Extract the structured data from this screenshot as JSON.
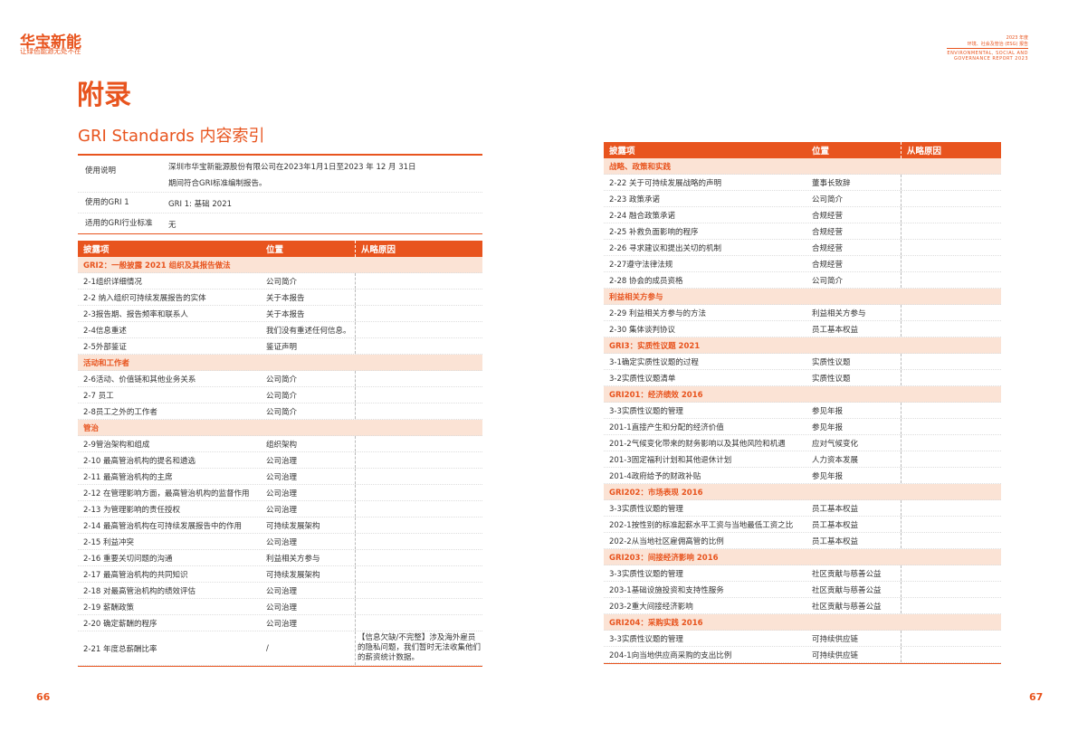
{
  "header": {
    "logo": "华宝新能",
    "slogan": "让绿色能源无处不在",
    "report_year": "2023 年度",
    "report_cn": "环境、社会及管治 (ESG) 报告",
    "report_en1": "ENVIRONMENTAL, SOCIAL AND",
    "report_en2": "GOVERNANCE REPORT 2023"
  },
  "title": "附录",
  "subtitle": "GRI Standards 内容索引",
  "info_table": {
    "rows": [
      [
        "使用说明",
        "深圳市华宝新能源股份有限公司在2023年1月1日至2023 年 12 月 31日期间符合GRI标准编制报告。"
      ],
      [
        "使用的GRI 1",
        "GRI 1: 基础 2021"
      ],
      [
        "适用的GRI行业标准",
        "无"
      ]
    ]
  },
  "columns": [
    "披露项",
    "位置",
    "从略原因"
  ],
  "left_table": {
    "rows": [
      [
        "GRI2：一般披露 2021 组织及其报告做法"
      ],
      [
        "2-1组织详细情况",
        "公司简介"
      ],
      [
        "2-2 纳入组织可持续发展报告的实体",
        "关于本报告"
      ],
      [
        "2-3报告期、报告频率和联系人",
        "关于本报告"
      ],
      [
        "2-4信息重述",
        "我们没有重述任何信息。"
      ],
      [
        "2-5外部鉴证",
        "鉴证声明"
      ],
      [
        "活动和工作者"
      ],
      [
        "2-6活动、价值链和其他业务关系",
        "公司简介"
      ],
      [
        "2-7 员工",
        "公司简介"
      ],
      [
        "2-8员工之外的工作者",
        "公司简介"
      ],
      [
        "管治"
      ],
      [
        "2-9管治架构和组成",
        "组织架构"
      ],
      [
        "2-10 最高管治机构的提名和遴选",
        "公司治理"
      ],
      [
        "2-11 最高管治机构的主席",
        "公司治理"
      ],
      [
        "2-12 在管理影响方面，最高管治机构的监督作用",
        "公司治理"
      ],
      [
        "2-13 为管理影响的责任授权",
        "公司治理"
      ],
      [
        "2-14 最高管治机构在可持续发展报告中的作用",
        "可持续发展架构"
      ],
      [
        "2-15 利益冲突",
        "公司治理"
      ],
      [
        "2-16 重要关切问题的沟通",
        "利益相关方参与"
      ],
      [
        "2-17 最高管治机构的共同知识",
        "可持续发展架构"
      ],
      [
        "2-18 对最高管治机构的绩效评估",
        "公司治理"
      ],
      [
        "2-19 薪酬政策",
        "公司治理"
      ],
      [
        "2-20 确定薪酬的程序",
        "公司治理"
      ],
      [
        "2-21 年度总薪酬比率",
        "/",
        "【信息欠缺/不完整】涉及海外雇员的隐私问题，我们暂时无法收集他们的薪资统计数据。"
      ]
    ]
  },
  "right_table": {
    "rows": [
      [
        "战略、政策和实践"
      ],
      [
        "2-22 关于可持续发展战略的声明",
        "董事长致辞"
      ],
      [
        "2-23 政策承诺",
        "公司简介"
      ],
      [
        "2-24 融合政策承诺",
        "合规经营"
      ],
      [
        "2-25 补救负面影响的程序",
        "合规经营"
      ],
      [
        "2-26 寻求建议和提出关切的机制",
        "合规经营"
      ],
      [
        "2-27遵守法律法规",
        "合规经营"
      ],
      [
        "2-28 协会的成员资格",
        "公司简介"
      ],
      [
        "利益相关方参与"
      ],
      [
        "2-29 利益相关方参与的方法",
        "利益相关方参与"
      ],
      [
        "2-30 集体谈判协议",
        "员工基本权益"
      ],
      [
        "GRI3：实质性议题 2021"
      ],
      [
        "3-1确定实质性议题的过程",
        "实质性议题"
      ],
      [
        "3-2实质性议题清单",
        "实质性议题"
      ],
      [
        "GRI201：经济绩效 2016"
      ],
      [
        "3-3实质性议题的管理",
        "参见年报"
      ],
      [
        "201-1直接产生和分配的经济价值",
        "参见年报"
      ],
      [
        "201-2气候变化带来的财务影响以及其他风险和机遇",
        "应对气候变化"
      ],
      [
        "201-3固定福利计划和其他退休计划",
        "人力资本发展"
      ],
      [
        "201-4政府给予的财政补贴",
        "参见年报"
      ],
      [
        "GRI202：市场表现 2016"
      ],
      [
        "3-3实质性议题的管理",
        "员工基本权益"
      ],
      [
        "202-1按性别的标准起薪水平工资与当地最低工资之比",
        "员工基本权益"
      ],
      [
        "202-2从当地社区雇佣高管的比例",
        "员工基本权益"
      ],
      [
        "GRI203：间接经济影响 2016"
      ],
      [
        "3-3实质性议题的管理",
        "社区贡献与慈善公益"
      ],
      [
        "203-1基础设施投资和支持性服务",
        "社区贡献与慈善公益"
      ],
      [
        "203-2重大间接经济影响",
        "社区贡献与慈善公益"
      ],
      [
        "GRI204：采购实践 2016"
      ],
      [
        "3-3实质性议题的管理",
        "可持续供应链"
      ],
      [
        "204-1向当地供应商采购的支出比例",
        "可持续供应链"
      ]
    ]
  },
  "page_left": "66",
  "page_right": "67"
}
